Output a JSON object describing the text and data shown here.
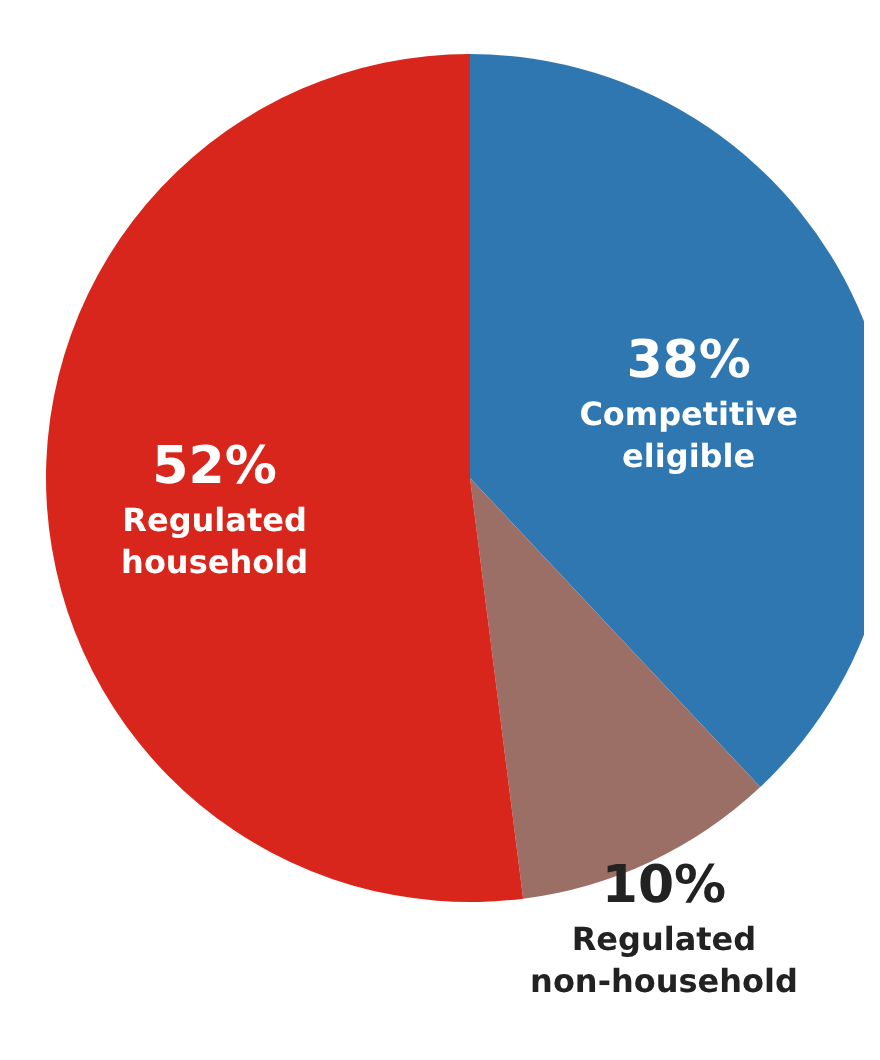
{
  "chart_data": {
    "type": "pie",
    "categories": [
      "Competitive eligible",
      "Regulated non-household",
      "Regulated household"
    ],
    "values": [
      38,
      10,
      52
    ],
    "colors": [
      "#2f77b1",
      "#9b6e66",
      "#d8261c"
    ],
    "value_labels": [
      "38%",
      "10%",
      "52%"
    ],
    "legend": false
  }
}
